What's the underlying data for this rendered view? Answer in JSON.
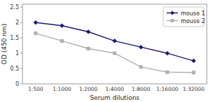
{
  "chart_data": {
    "type": "line",
    "xlabel": "Serum dilutions",
    "ylabel": "OD (450 nm)",
    "categories": [
      "1:500",
      "1:1000",
      "1:2000",
      "1:4000",
      "1:8000",
      "1:16000",
      "1:32000"
    ],
    "series": [
      {
        "name": "mouse 1",
        "color": "#1a1a72",
        "marker": "diamond",
        "values": [
          2.0,
          1.9,
          1.7,
          1.4,
          1.2,
          1.0,
          0.75
        ]
      },
      {
        "name": "mouse 2",
        "color": "#b0b0b0",
        "marker": "square",
        "values": [
          1.65,
          1.4,
          1.15,
          1.0,
          0.55,
          0.38,
          0.37
        ]
      }
    ],
    "ylim": [
      0,
      2.6
    ],
    "yticks": [
      0,
      0.5,
      1,
      1.5,
      2,
      2.5
    ],
    "grid": false,
    "legend": "upper right"
  }
}
